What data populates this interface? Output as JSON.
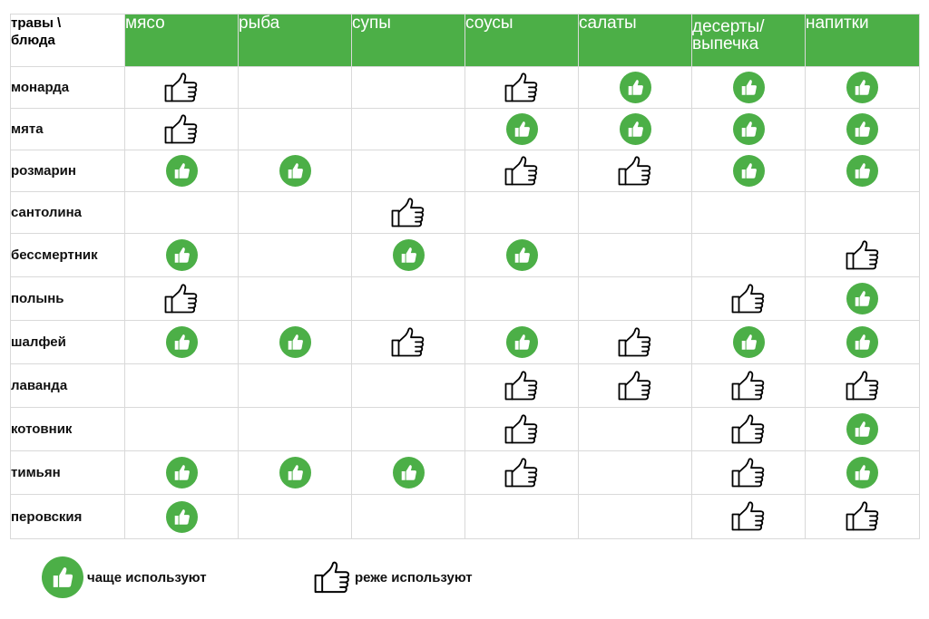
{
  "header": {
    "corner_line1": "травы \\",
    "corner_line2": "блюда",
    "dishes": [
      {
        "key": "meat",
        "label": "мясо"
      },
      {
        "key": "fish",
        "label": "рыба"
      },
      {
        "key": "soups",
        "label": "супы"
      },
      {
        "key": "sauces",
        "label": "соусы"
      },
      {
        "key": "salads",
        "label": "салаты"
      },
      {
        "key": "desserts",
        "label_line1": "десерты/",
        "label_line2": "выпечка"
      },
      {
        "key": "drinks",
        "label": "напитки"
      }
    ]
  },
  "rows": [
    {
      "herb": "монарда",
      "cells": [
        "rare",
        "",
        "",
        "rare",
        "often",
        "often",
        "often"
      ]
    },
    {
      "herb": "мята",
      "cells": [
        "rare",
        "",
        "",
        "often",
        "often",
        "often",
        "often"
      ]
    },
    {
      "herb": "розмарин",
      "cells": [
        "often",
        "often",
        "",
        "rare",
        "rare",
        "often",
        "often"
      ]
    },
    {
      "herb": "сантолина",
      "cells": [
        "",
        "",
        "rare",
        "",
        "",
        "",
        ""
      ]
    },
    {
      "herb": "бессмертник",
      "cells": [
        "often",
        "",
        "often",
        "often",
        "",
        "",
        "rare"
      ]
    },
    {
      "herb": "полынь",
      "cells": [
        "rare",
        "",
        "",
        "",
        "",
        "rare",
        "often"
      ]
    },
    {
      "herb": "шалфей",
      "cells": [
        "often",
        "often",
        "rare",
        "often",
        "rare",
        "often",
        "often"
      ]
    },
    {
      "herb": "лаванда",
      "cells": [
        "",
        "",
        "",
        "rare",
        "rare",
        "rare",
        "rare"
      ]
    },
    {
      "herb": "котовник",
      "cells": [
        "",
        "",
        "",
        "rare",
        "",
        "rare",
        "often"
      ]
    },
    {
      "herb": "тимьян",
      "cells": [
        "often",
        "often",
        "often",
        "rare",
        "",
        "rare",
        "often"
      ]
    },
    {
      "herb": "перовския",
      "cells": [
        "often",
        "",
        "",
        "",
        "",
        "rare",
        "rare"
      ]
    }
  ],
  "legend": {
    "often_label": "чаще используют",
    "often_icon": "thumbs-up-filled-icon",
    "rare_label": "реже используют",
    "rare_icon": "thumbs-up-outline-icon"
  },
  "colors": {
    "accent_green": "#4caf47",
    "grid": "#d9d9d9"
  }
}
